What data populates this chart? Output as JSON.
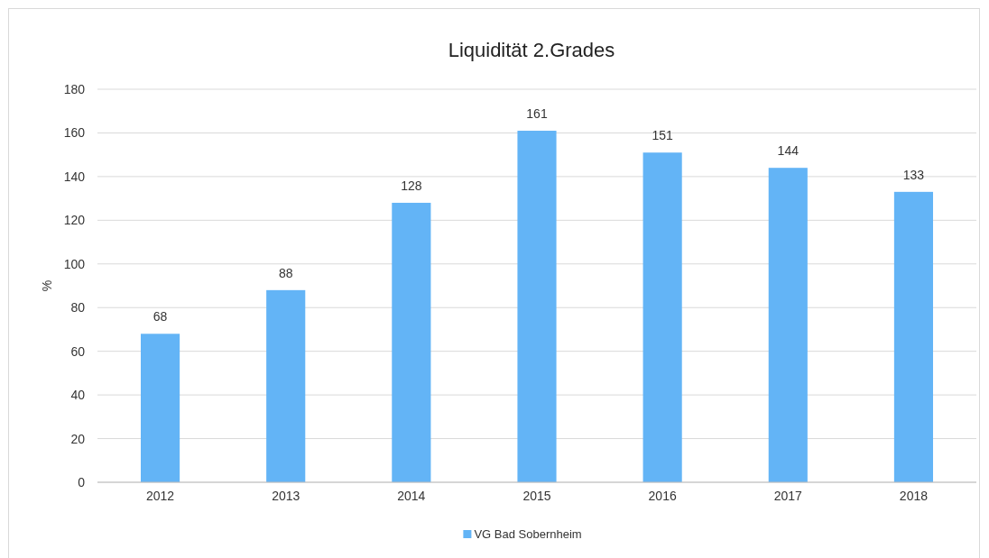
{
  "chart_data": {
    "type": "bar",
    "title": "Liquidität 2.Grades",
    "ylabel": "%",
    "categories": [
      "2012",
      "2013",
      "2014",
      "2015",
      "2016",
      "2017",
      "2018"
    ],
    "series": [
      {
        "name": "VG Bad Sobernheim",
        "color": "#63b4f6",
        "values": [
          68,
          88,
          128,
          161,
          151,
          144,
          133
        ]
      }
    ],
    "ylim": [
      0,
      180
    ],
    "yticks": [
      0,
      20,
      40,
      60,
      80,
      100,
      120,
      140,
      160,
      180
    ],
    "grid": "y",
    "legend": "bottom",
    "data_labels": true
  }
}
